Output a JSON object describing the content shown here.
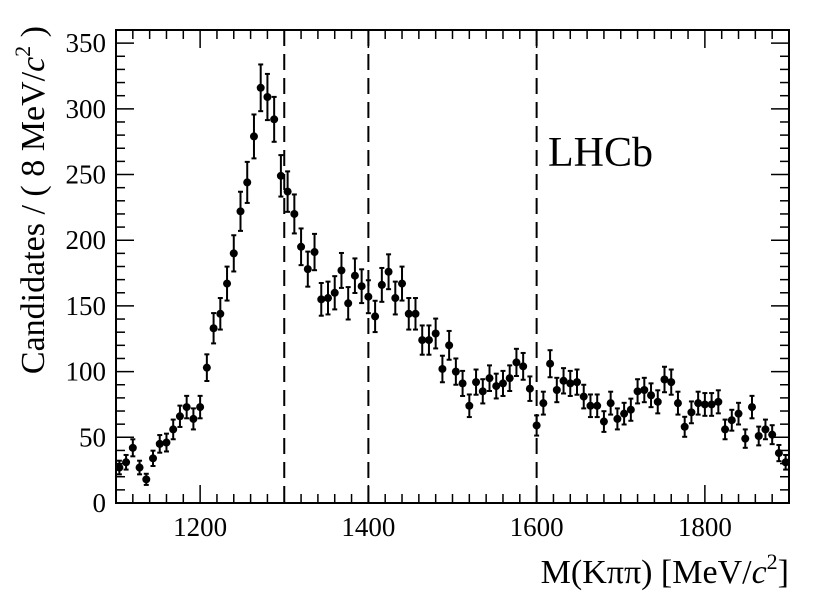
{
  "chart_data": {
    "type": "scatter",
    "watermark": "LHCb",
    "xlabel_main": "M(Kππ) [MeV/",
    "xlabel_c": "c",
    "xlabel_exp": "2",
    "xlabel_end": "]",
    "ylabel_main": "Candidates / ( 8 MeV/",
    "ylabel_c": "c",
    "ylabel_exp": "2",
    "ylabel_end": " )",
    "xlim": [
      1100,
      1900
    ],
    "ylim": [
      0,
      360
    ],
    "x_ticks": [
      "1200",
      "1400",
      "1600",
      "1800"
    ],
    "y_ticks": [
      "0",
      "50",
      "100",
      "150",
      "200",
      "250",
      "300",
      "350"
    ],
    "vertical_lines": [
      1300,
      1400,
      1600
    ],
    "bin_width": 8,
    "points": [
      [
        1104,
        27
      ],
      [
        1112,
        31
      ],
      [
        1120,
        42
      ],
      [
        1128,
        27
      ],
      [
        1136,
        18
      ],
      [
        1144,
        34
      ],
      [
        1152,
        45
      ],
      [
        1160,
        46
      ],
      [
        1168,
        56
      ],
      [
        1176,
        66
      ],
      [
        1184,
        73
      ],
      [
        1192,
        64
      ],
      [
        1200,
        73
      ],
      [
        1208,
        103
      ],
      [
        1216,
        133
      ],
      [
        1224,
        144
      ],
      [
        1232,
        167
      ],
      [
        1240,
        190
      ],
      [
        1248,
        222
      ],
      [
        1256,
        244
      ],
      [
        1264,
        279
      ],
      [
        1272,
        316
      ],
      [
        1280,
        309
      ],
      [
        1288,
        292
      ],
      [
        1296,
        249
      ],
      [
        1304,
        237
      ],
      [
        1312,
        220
      ],
      [
        1320,
        195
      ],
      [
        1328,
        178
      ],
      [
        1336,
        191
      ],
      [
        1344,
        155
      ],
      [
        1352,
        156
      ],
      [
        1360,
        160
      ],
      [
        1368,
        177
      ],
      [
        1376,
        152
      ],
      [
        1384,
        173
      ],
      [
        1392,
        165
      ],
      [
        1400,
        157
      ],
      [
        1408,
        142
      ],
      [
        1416,
        166
      ],
      [
        1424,
        176
      ],
      [
        1432,
        156
      ],
      [
        1440,
        167
      ],
      [
        1448,
        144
      ],
      [
        1456,
        144
      ],
      [
        1464,
        124
      ],
      [
        1472,
        124
      ],
      [
        1480,
        129
      ],
      [
        1488,
        102
      ],
      [
        1496,
        120
      ],
      [
        1504,
        100
      ],
      [
        1512,
        91
      ],
      [
        1520,
        74
      ],
      [
        1528,
        92
      ],
      [
        1536,
        85
      ],
      [
        1544,
        95
      ],
      [
        1552,
        89
      ],
      [
        1560,
        91
      ],
      [
        1568,
        95
      ],
      [
        1576,
        107
      ],
      [
        1584,
        104
      ],
      [
        1592,
        87
      ],
      [
        1600,
        59
      ],
      [
        1608,
        76
      ],
      [
        1616,
        106
      ],
      [
        1624,
        86
      ],
      [
        1632,
        93
      ],
      [
        1640,
        91
      ],
      [
        1648,
        92
      ],
      [
        1656,
        81
      ],
      [
        1664,
        74
      ],
      [
        1672,
        74
      ],
      [
        1680,
        62
      ],
      [
        1688,
        76
      ],
      [
        1696,
        64
      ],
      [
        1704,
        68
      ],
      [
        1712,
        71
      ],
      [
        1720,
        85
      ],
      [
        1728,
        86
      ],
      [
        1736,
        82
      ],
      [
        1744,
        77
      ],
      [
        1752,
        94
      ],
      [
        1760,
        92
      ],
      [
        1768,
        76
      ],
      [
        1776,
        58
      ],
      [
        1784,
        69
      ],
      [
        1792,
        76
      ],
      [
        1800,
        75
      ],
      [
        1808,
        75
      ],
      [
        1816,
        77
      ],
      [
        1824,
        56
      ],
      [
        1832,
        63
      ],
      [
        1840,
        68
      ],
      [
        1848,
        49
      ],
      [
        1856,
        73
      ],
      [
        1864,
        51
      ],
      [
        1872,
        56
      ],
      [
        1880,
        52
      ],
      [
        1888,
        38
      ],
      [
        1896,
        31
      ]
    ]
  }
}
